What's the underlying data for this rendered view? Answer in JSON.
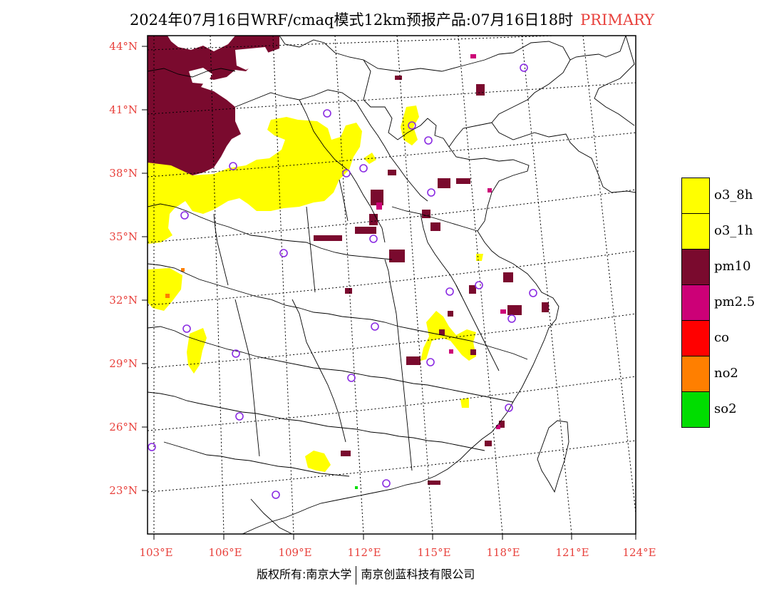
{
  "title": {
    "main": "2024年07月16日WRF/cmaq模式12km预报产品:07月16日18时",
    "tag": "PRIMARY"
  },
  "axes": {
    "lat_labels": [
      "44°N",
      "41°N",
      "38°N",
      "35°N",
      "32°N",
      "29°N",
      "26°N",
      "23°N"
    ],
    "lon_labels": [
      "103°E",
      "106°E",
      "109°E",
      "112°E",
      "115°E",
      "118°E",
      "121°E",
      "124°E"
    ]
  },
  "legend": [
    {
      "label": "o3_8h",
      "color": "#ffff00"
    },
    {
      "label": "o3_1h",
      "color": "#ffff00"
    },
    {
      "label": "pm10",
      "color": "#7a0a2e"
    },
    {
      "label": "pm2.5",
      "color": "#cc0077"
    },
    {
      "label": "co",
      "color": "#ff0000"
    },
    {
      "label": "no2",
      "color": "#ff7f00"
    },
    {
      "label": "so2",
      "color": "#00dd00"
    }
  ],
  "footer": {
    "left": "版权所有:南京大学",
    "right": "南京创蓝科技有限公司"
  },
  "colors": {
    "accent": "#e8413c",
    "o3": "#ffff00",
    "pm10": "#7a0a2e",
    "pm25": "#cc0077",
    "station": "#8a2be2"
  }
}
